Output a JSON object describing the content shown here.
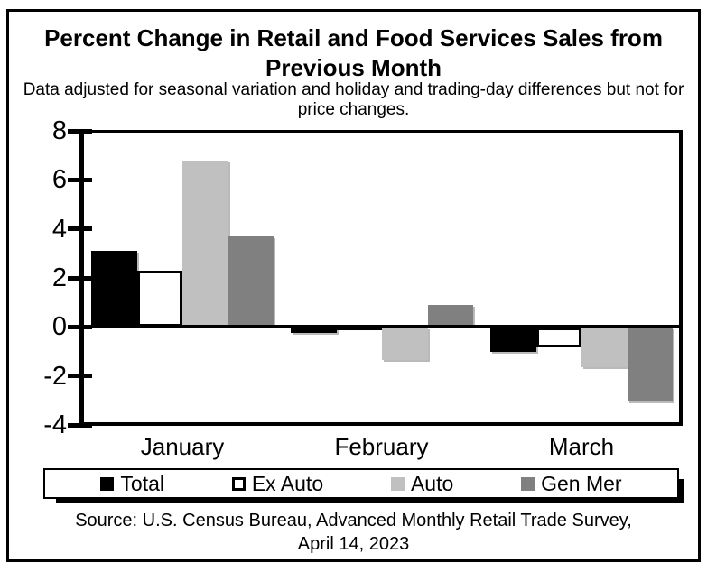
{
  "figure": {
    "title_line1": "Percent Change in Retail and Food Services Sales from",
    "title_line2": "Previous Month",
    "subtitle_line1": "Data adjusted for seasonal variation and holiday and trading-day differences but not for",
    "subtitle_line2": "price changes.",
    "source_line1": "Source: U.S. Census Bureau, Advanced Monthly Retail Trade Survey,",
    "source_line2": "April 14, 2023"
  },
  "chart_data": {
    "type": "bar",
    "title": "Percent Change in Retail and Food Services Sales from Previous Month",
    "subtitle": "Data adjusted for seasonal variation and holiday and trading-day differences but not for price changes.",
    "categories": [
      "January",
      "February",
      "March"
    ],
    "series": [
      {
        "name": "Total",
        "color": "#000000",
        "border": "#6e6e6e",
        "values": [
          3.1,
          -0.2,
          -1.0
        ]
      },
      {
        "name": "Ex Auto",
        "color": "#ffffff",
        "border": "#000000",
        "values": [
          2.3,
          0.1,
          -0.8
        ]
      },
      {
        "name": "Auto",
        "color": "#c0c0c0",
        "border": "#ababab",
        "values": [
          6.8,
          -1.3,
          -1.6
        ]
      },
      {
        "name": "Gen Mer",
        "color": "#808080",
        "border": "#8f8f8f",
        "values": [
          3.7,
          0.9,
          -3.0
        ]
      }
    ],
    "ylim": [
      -4,
      8
    ],
    "y_ticks": [
      8,
      6,
      4,
      2,
      0,
      -2,
      -4
    ],
    "xlabel": "",
    "ylabel": "",
    "grid": false,
    "legend_position": "bottom",
    "source": "Source: U.S. Census Bureau, Advanced Monthly Retail Trade Survey, April 14, 2023"
  }
}
